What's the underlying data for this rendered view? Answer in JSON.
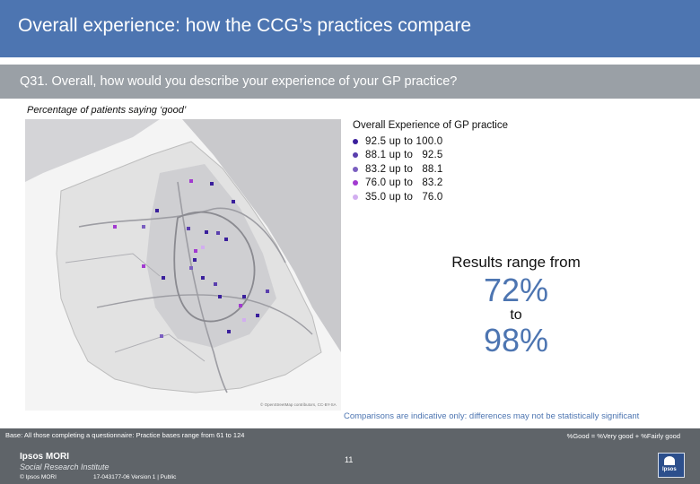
{
  "header": {
    "title": "Overall experience: how the CCG’s practices compare"
  },
  "question": {
    "text": "Q31. Overall, how would you describe your experience of your GP practice?"
  },
  "subtitle": "Percentage of patients saying ‘good’",
  "legend": {
    "title": "Overall Experience of GP practice",
    "items": [
      {
        "label": "92.5 up to 100.0",
        "color": "#3a1f9c"
      },
      {
        "label": "88.1 up to   92.5",
        "color": "#5a3fae"
      },
      {
        "label": "83.2 up to   88.1",
        "color": "#7b5fc0"
      },
      {
        "label": "76.0 up to   83.2",
        "color": "#a23ad0"
      },
      {
        "label": "35.0 up to   76.0",
        "color": "#d2aef0"
      }
    ]
  },
  "map": {
    "attribution": "© OpenStreetMap contributors, CC-BY-SA"
  },
  "results": {
    "intro": "Results range from",
    "low": "72%",
    "to": "to",
    "high": "98%"
  },
  "note": "Comparisons are indicative only: differences may not be statistically significant",
  "base": {
    "text": "Base: All those completing a questionnaire: Practice bases range from 61 to 124",
    "definition": "%Good = %Very good + %Fairly good"
  },
  "footer": {
    "brand_line1": "Ipsos MORI",
    "brand_line2": "Social Research Institute",
    "copyright": "© Ipsos MORI",
    "job": "17-043177-06 Version 1 | Public",
    "page_number": "11",
    "logo_text": "Ipsos"
  }
}
